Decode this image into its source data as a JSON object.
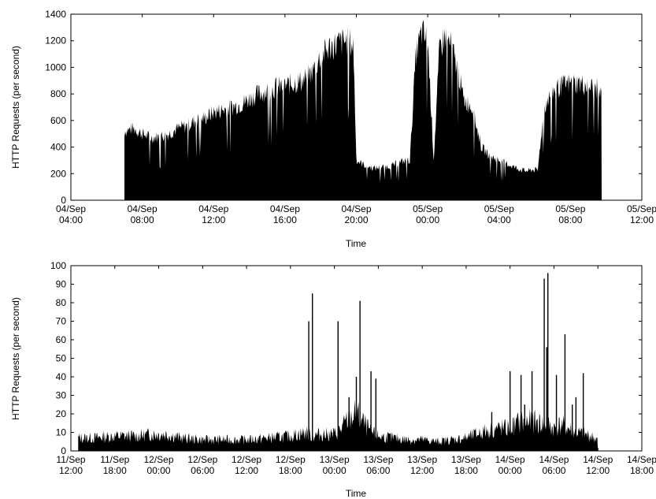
{
  "chart_data": [
    {
      "type": "area",
      "title": "",
      "xlabel": "Time",
      "ylabel": "HTTP Requests (per second)",
      "xlim": [
        "2023-09-04T04:00",
        "2023-09-05T12:00"
      ],
      "ylim": [
        0,
        1400
      ],
      "yticks": [
        0,
        200,
        400,
        600,
        800,
        1000,
        1200,
        1400
      ],
      "xticks": [
        {
          "t": "2023-09-04T04:00",
          "label": [
            "04/Sep",
            "04:00"
          ]
        },
        {
          "t": "2023-09-04T08:00",
          "label": [
            "04/Sep",
            "08:00"
          ]
        },
        {
          "t": "2023-09-04T12:00",
          "label": [
            "04/Sep",
            "12:00"
          ]
        },
        {
          "t": "2023-09-04T16:00",
          "label": [
            "04/Sep",
            "16:00"
          ]
        },
        {
          "t": "2023-09-04T20:00",
          "label": [
            "04/Sep",
            "20:00"
          ]
        },
        {
          "t": "2023-09-05T00:00",
          "label": [
            "05/Sep",
            "00:00"
          ]
        },
        {
          "t": "2023-09-05T04:00",
          "label": [
            "05/Sep",
            "04:00"
          ]
        },
        {
          "t": "2023-09-05T08:00",
          "label": [
            "05/Sep",
            "08:00"
          ]
        },
        {
          "t": "2023-09-05T12:00",
          "label": [
            "05/Sep",
            "12:00"
          ]
        }
      ],
      "series": [
        {
          "x": [
            "2023-09-04T07:00",
            "2023-09-04T07:30",
            "2023-09-04T08:00",
            "2023-09-04T08:30",
            "2023-09-04T09:00",
            "2023-09-04T09:30",
            "2023-09-04T10:00",
            "2023-09-04T10:30",
            "2023-09-04T11:00",
            "2023-09-04T11:30",
            "2023-09-04T12:00",
            "2023-09-04T12:30",
            "2023-09-04T13:00",
            "2023-09-04T13:30",
            "2023-09-04T14:00",
            "2023-09-04T14:30",
            "2023-09-04T15:00",
            "2023-09-04T15:30",
            "2023-09-04T16:00",
            "2023-09-04T16:30",
            "2023-09-04T17:00",
            "2023-09-04T17:30",
            "2023-09-04T18:00",
            "2023-09-04T18:30",
            "2023-09-04T19:00",
            "2023-09-04T19:30",
            "2023-09-04T19:50",
            "2023-09-04T20:00",
            "2023-09-04T20:30",
            "2023-09-04T21:00",
            "2023-09-04T21:30",
            "2023-09-04T22:00",
            "2023-09-04T22:30",
            "2023-09-04T23:00",
            "2023-09-04T23:20",
            "2023-09-04T23:40",
            "2023-09-05T00:00",
            "2023-09-05T00:20",
            "2023-09-05T00:40",
            "2023-09-05T01:00",
            "2023-09-05T01:20",
            "2023-09-05T01:40",
            "2023-09-05T02:00",
            "2023-09-05T02:30",
            "2023-09-05T03:00",
            "2023-09-05T03:30",
            "2023-09-05T04:00",
            "2023-09-05T04:30",
            "2023-09-05T05:00",
            "2023-09-05T05:30",
            "2023-09-05T06:00",
            "2023-09-05T06:10",
            "2023-09-05T06:30",
            "2023-09-05T07:00",
            "2023-09-05T07:30",
            "2023-09-05T08:00",
            "2023-09-05T08:30",
            "2023-09-05T09:00",
            "2023-09-05T09:30",
            "2023-09-05T09:45"
          ],
          "y": [
            520,
            540,
            500,
            470,
            480,
            500,
            540,
            560,
            600,
            620,
            660,
            680,
            700,
            720,
            760,
            800,
            820,
            850,
            860,
            880,
            900,
            960,
            1080,
            1150,
            1180,
            1200,
            1160,
            300,
            260,
            240,
            250,
            260,
            290,
            300,
            1100,
            1260,
            1200,
            300,
            1150,
            1240,
            1150,
            1000,
            760,
            700,
            400,
            330,
            300,
            270,
            240,
            220,
            230,
            220,
            700,
            820,
            860,
            880,
            880,
            860,
            840,
            780
          ]
        }
      ]
    },
    {
      "type": "area",
      "title": "",
      "xlabel": "Time",
      "ylabel": "HTTP Requests (per second)",
      "xlim": [
        "2023-09-11T12:00",
        "2023-09-14T18:00"
      ],
      "ylim": [
        0,
        100
      ],
      "yticks": [
        0,
        10,
        20,
        30,
        40,
        50,
        60,
        70,
        80,
        90,
        100
      ],
      "xticks": [
        {
          "t": "2023-09-11T12:00",
          "label": [
            "11/Sep",
            "12:00"
          ]
        },
        {
          "t": "2023-09-11T18:00",
          "label": [
            "11/Sep",
            "18:00"
          ]
        },
        {
          "t": "2023-09-12T00:00",
          "label": [
            "12/Sep",
            "00:00"
          ]
        },
        {
          "t": "2023-09-12T06:00",
          "label": [
            "12/Sep",
            "06:00"
          ]
        },
        {
          "t": "2023-09-12T12:00",
          "label": [
            "12/Sep",
            "12:00"
          ]
        },
        {
          "t": "2023-09-12T18:00",
          "label": [
            "12/Sep",
            "18:00"
          ]
        },
        {
          "t": "2023-09-13T00:00",
          "label": [
            "13/Sep",
            "00:00"
          ]
        },
        {
          "t": "2023-09-13T06:00",
          "label": [
            "13/Sep",
            "06:00"
          ]
        },
        {
          "t": "2023-09-13T12:00",
          "label": [
            "13/Sep",
            "12:00"
          ]
        },
        {
          "t": "2023-09-13T18:00",
          "label": [
            "13/Sep",
            "18:00"
          ]
        },
        {
          "t": "2023-09-14T00:00",
          "label": [
            "14/Sep",
            "00:00"
          ]
        },
        {
          "t": "2023-09-14T06:00",
          "label": [
            "14/Sep",
            "06:00"
          ]
        },
        {
          "t": "2023-09-14T12:00",
          "label": [
            "14/Sep",
            "12:00"
          ]
        },
        {
          "t": "2023-09-14T18:00",
          "label": [
            "14/Sep",
            "18:00"
          ]
        }
      ],
      "series": [
        {
          "x": [
            "2023-09-11T13:00",
            "2023-09-11T15:00",
            "2023-09-11T18:00",
            "2023-09-11T21:00",
            "2023-09-11T23:00",
            "2023-09-12T01:00",
            "2023-09-12T03:00",
            "2023-09-12T06:00",
            "2023-09-12T09:00",
            "2023-09-12T12:00",
            "2023-09-12T15:00",
            "2023-09-12T18:00",
            "2023-09-12T20:00",
            "2023-09-12T21:00",
            "2023-09-12T22:00",
            "2023-09-13T00:00",
            "2023-09-13T01:00",
            "2023-09-13T02:00",
            "2023-09-13T03:00",
            "2023-09-13T04:00",
            "2023-09-13T05:00",
            "2023-09-13T06:00",
            "2023-09-13T08:00",
            "2023-09-13T10:00",
            "2023-09-13T12:00",
            "2023-09-13T14:00",
            "2023-09-13T16:00",
            "2023-09-13T18:00",
            "2023-09-13T20:00",
            "2023-09-13T22:00",
            "2023-09-14T00:00",
            "2023-09-14T01:00",
            "2023-09-14T02:00",
            "2023-09-14T03:00",
            "2023-09-14T04:00",
            "2023-09-14T05:00",
            "2023-09-14T06:00",
            "2023-09-14T07:00",
            "2023-09-14T08:00",
            "2023-09-14T09:00",
            "2023-09-14T10:00",
            "2023-09-14T11:00",
            "2023-09-14T12:00"
          ],
          "y": [
            7,
            7,
            8,
            8,
            9,
            9,
            7,
            6,
            6,
            6,
            7,
            8,
            10,
            8,
            9,
            9,
            12,
            18,
            20,
            15,
            10,
            8,
            7,
            6,
            6,
            5,
            6,
            7,
            10,
            12,
            12,
            15,
            16,
            16,
            15,
            14,
            12,
            14,
            12,
            10,
            9,
            8,
            6
          ]
        }
      ],
      "spikes": [
        {
          "x": "2023-09-12T20:30",
          "y": 70
        },
        {
          "x": "2023-09-12T21:00",
          "y": 85
        },
        {
          "x": "2023-09-13T00:30",
          "y": 70
        },
        {
          "x": "2023-09-13T03:30",
          "y": 81
        },
        {
          "x": "2023-09-13T03:00",
          "y": 40
        },
        {
          "x": "2023-09-13T05:00",
          "y": 43
        },
        {
          "x": "2023-09-13T05:40",
          "y": 39
        },
        {
          "x": "2023-09-13T02:00",
          "y": 29
        },
        {
          "x": "2023-09-14T00:00",
          "y": 43
        },
        {
          "x": "2023-09-14T01:30",
          "y": 41
        },
        {
          "x": "2023-09-14T03:00",
          "y": 43
        },
        {
          "x": "2023-09-14T04:40",
          "y": 93
        },
        {
          "x": "2023-09-14T05:10",
          "y": 96
        },
        {
          "x": "2023-09-14T05:00",
          "y": 56
        },
        {
          "x": "2023-09-14T06:20",
          "y": 41
        },
        {
          "x": "2023-09-14T07:30",
          "y": 63
        },
        {
          "x": "2023-09-14T08:30",
          "y": 25
        },
        {
          "x": "2023-09-14T09:00",
          "y": 29
        },
        {
          "x": "2023-09-14T10:00",
          "y": 42
        },
        {
          "x": "2023-09-13T21:30",
          "y": 21
        },
        {
          "x": "2023-09-14T02:00",
          "y": 25
        }
      ]
    }
  ]
}
